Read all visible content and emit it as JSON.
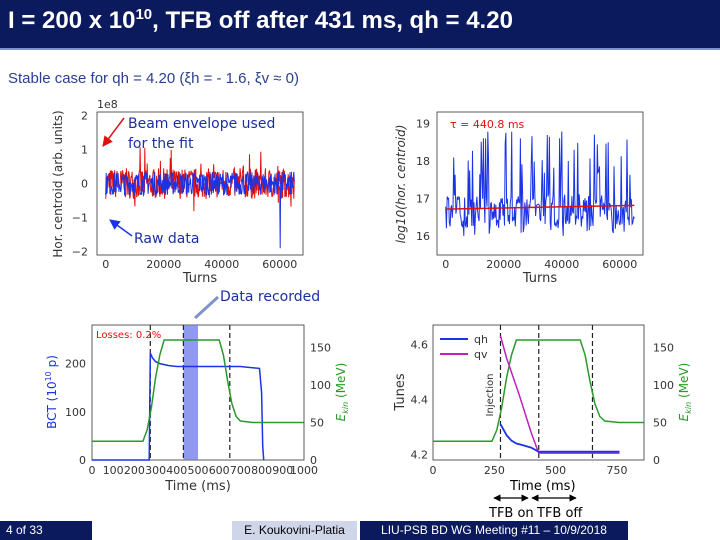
{
  "slide": {
    "title_main": "I = 200 x 10",
    "title_sup": "10",
    "title_rest": ", TFB off after 431 ms, qh = 4.20",
    "subtitle": "Stable case for qh = 4.20 (ξh = - 1.6, ξv ≈ 0)",
    "colors": {
      "title_bg": "#0a1a5c",
      "accent": "#2a3f8f",
      "annot": "#1c2fa0"
    }
  },
  "annotations": {
    "beam_envelope_l1": "Beam envelope used",
    "beam_envelope_l2": "for the fit",
    "raw_data": "Raw data",
    "data_recorded": "Data recorded",
    "time_ms": "Time (ms)",
    "tfb_on": "TFB on",
    "tfb_off": "TFB off"
  },
  "footer": {
    "page": "4 of 33",
    "author": "E. Koukovini-Platia",
    "meeting": "LIU-PSB BD WG Meeting #11 – 10/9/2018"
  },
  "chart_data": [
    {
      "type": "line",
      "id": "raw-centroid",
      "ylabel": "Hor. centroid (arb. units)",
      "xlabel": "Turns",
      "y_multiplier": "1e8",
      "xlim": [
        -3000,
        68000
      ],
      "ylim": [
        -2.1,
        2.1
      ],
      "xticks": [
        "0",
        "20000",
        "40000",
        "60000"
      ],
      "yticks": [
        "−2",
        "−1",
        "0",
        "1",
        "2"
      ],
      "series": [
        {
          "role": "envelope",
          "color": "#e01010",
          "amplitude": 0.45
        },
        {
          "role": "raw",
          "color": "#1a33e6",
          "amplitude": 0.35
        }
      ]
    },
    {
      "type": "line",
      "id": "log-centroid",
      "ylabel": "log10(hor. centroid)",
      "xlabel": "Turns",
      "xlim": [
        -3000,
        68000
      ],
      "ylim": [
        15.5,
        19.3
      ],
      "xticks": [
        "0",
        "20000",
        "40000",
        "60000"
      ],
      "yticks": [
        "16",
        "17",
        "18",
        "19"
      ],
      "annotation": "τ = 440.8 ms",
      "fit": {
        "color": "#e01010",
        "start": 16.72,
        "end": 16.82
      },
      "data_color": "#1a33e6"
    },
    {
      "type": "line",
      "id": "bct-energy",
      "xlabel": "Time (ms)",
      "ylabel_left": "BCT (10",
      "ylabel_left_sup": "10",
      "ylabel_left_end": " p)",
      "ylabel_right": "E",
      "ylabel_right_sub": "kin",
      "ylabel_right_end": " (MeV)",
      "xlim": [
        0,
        1000
      ],
      "ylim_left": [
        0,
        280
      ],
      "ylim_right": [
        0,
        180
      ],
      "xticks": [
        "0",
        "100",
        "200",
        "300",
        "400",
        "500",
        "600",
        "700",
        "800",
        "900",
        "1000"
      ],
      "yticks_left": [
        "0",
        "100",
        "200"
      ],
      "yticks_right": [
        "0",
        "50",
        "100",
        "150"
      ],
      "losses_label": "Losses: 0.2%",
      "dashed_x": [
        275,
        431,
        650
      ],
      "shaded_region": [
        432,
        500
      ],
      "series": [
        {
          "name": "BCT",
          "color": "#1a33e6",
          "x": [
            0,
            270,
            275,
            285,
            300,
            320,
            360,
            400,
            500,
            600,
            700,
            790,
            800,
            805,
            810
          ],
          "y": [
            0,
            0,
            222,
            212,
            204,
            200,
            196,
            194,
            194,
            194,
            194,
            190,
            140,
            30,
            0
          ]
        },
        {
          "name": "Ekin",
          "color": "#2a9a2a",
          "x": [
            0,
            240,
            260,
            280,
            300,
            320,
            340,
            600,
            620,
            640,
            660,
            680,
            700,
            760,
            820,
            900,
            1000
          ],
          "y": [
            25,
            25,
            40,
            70,
            110,
            140,
            160,
            160,
            140,
            105,
            75,
            58,
            52,
            50,
            50,
            50,
            50
          ]
        }
      ]
    },
    {
      "type": "line",
      "id": "tunes",
      "ylabel_left": "Tunes",
      "ylabel_right": "E",
      "ylabel_right_sub": "kin",
      "ylabel_right_end": " (MeV)",
      "xlim": [
        0,
        860
      ],
      "ylim_left": [
        4.18,
        4.67
      ],
      "ylim_right": [
        0,
        180
      ],
      "xticks": [
        "0",
        "250",
        "500",
        "750"
      ],
      "yticks_left": [
        "4.2",
        "4.4",
        "4.6"
      ],
      "yticks_right": [
        "0",
        "50",
        "100",
        "150"
      ],
      "injection_label": "Injection",
      "dashed_x": [
        275,
        431,
        650
      ],
      "series": [
        {
          "name": "qh",
          "color": "#1a33e6",
          "x": [
            275,
            300,
            320,
            340,
            360,
            400,
            431,
            500,
            650,
            760
          ],
          "y": [
            4.31,
            4.27,
            4.25,
            4.24,
            4.235,
            4.225,
            4.21,
            4.21,
            4.21,
            4.21
          ]
        },
        {
          "name": "qv",
          "color": "#c020c0",
          "x": [
            275,
            300,
            350,
            400,
            431,
            500,
            650,
            760
          ],
          "y": [
            4.63,
            4.55,
            4.42,
            4.28,
            4.205,
            4.205,
            4.205,
            4.205
          ]
        },
        {
          "name": "Ekin",
          "color": "#2a9a2a",
          "x": [
            0,
            240,
            260,
            280,
            300,
            320,
            340,
            600,
            620,
            640,
            660,
            680,
            700,
            760,
            820,
            860
          ],
          "y": [
            25,
            25,
            40,
            70,
            110,
            140,
            160,
            160,
            140,
            105,
            75,
            58,
            52,
            50,
            50,
            50
          ]
        }
      ]
    }
  ]
}
